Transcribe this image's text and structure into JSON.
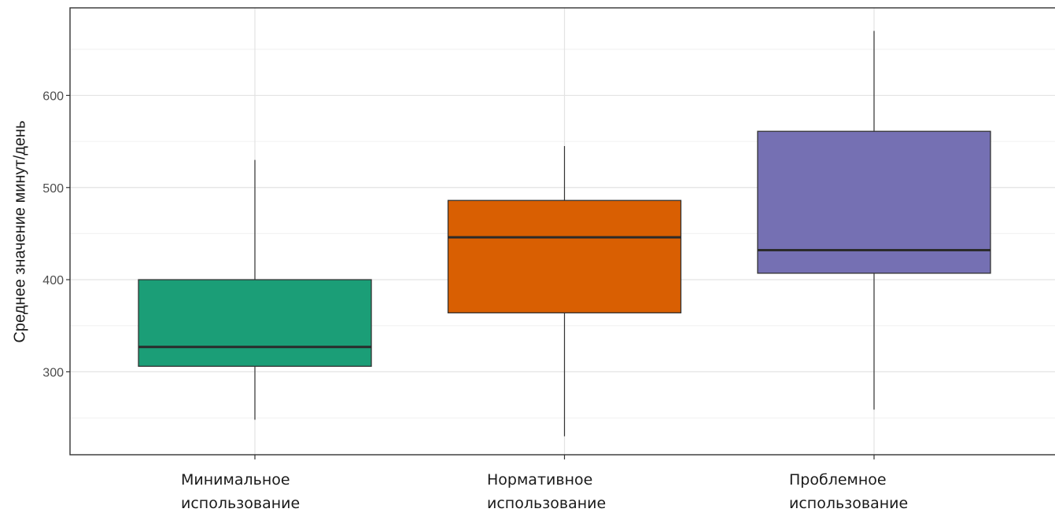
{
  "chart_data": {
    "type": "box",
    "ylabel": "Среднее значение минут/день",
    "xlabel": "",
    "ylim": [
      210,
      695
    ],
    "y_ticks": [
      300,
      400,
      500,
      600
    ],
    "grid": true,
    "categories": [
      {
        "line1": "Минимальное",
        "line2": "использование"
      },
      {
        "line1": "Нормативное",
        "line2": "использование"
      },
      {
        "line1": "Проблемное",
        "line2": "использование"
      }
    ],
    "boxes": [
      {
        "whisker_low": 248,
        "q1": 306,
        "median": 327,
        "q3": 400,
        "whisker_high": 530,
        "color": "#1b9e77"
      },
      {
        "whisker_low": 230,
        "q1": 364,
        "median": 446,
        "q3": 486,
        "whisker_high": 545,
        "color": "#d95f02"
      },
      {
        "whisker_low": 259,
        "q1": 407,
        "median": 432,
        "q3": 561,
        "whisker_high": 670,
        "color": "#7570b3"
      }
    ]
  }
}
